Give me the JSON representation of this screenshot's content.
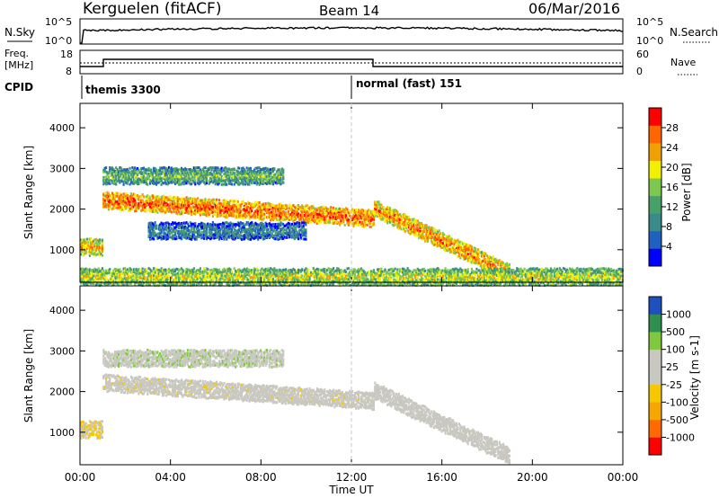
{
  "header": {
    "station": "Kerguelen (fitACF)",
    "beam": "Beam 14",
    "date": "06/Mar/2016"
  },
  "panels": {
    "nsky": {
      "left_label": "N.Sky",
      "left_tick_top": "10^5",
      "left_tick_bottom": "10^0",
      "right_label": "N.Search",
      "right_tick_top": "10^5",
      "right_tick_bottom": "10^0"
    },
    "freq": {
      "left_label_1": "Freq.",
      "left_label_2": "[MHz]",
      "left_tick_top": "18",
      "left_tick_bottom": "8",
      "right_label": "Nave",
      "right_tick_top": "60",
      "right_tick_bottom": "0"
    },
    "cpid": {
      "label": "CPID",
      "mode_1": "themis 3300",
      "mode_2": "normal (fast) 151",
      "mode_2_start_hour": 12.0
    }
  },
  "colors": {
    "power_scale": [
      "#0000ff",
      "#2060c0",
      "#3a8a8a",
      "#49a16a",
      "#7fc850",
      "#f0f000",
      "#f0a000",
      "#ff6600",
      "#ff0000"
    ],
    "velocity_scale": [
      "#ff0000",
      "#ff6a00",
      "#f7a600",
      "#f5c800",
      "#c8c8c0",
      "#c8c8c0",
      "#80c840",
      "#2f8f4f",
      "#2050c0"
    ]
  },
  "chart_data": [
    {
      "type": "heatmap",
      "title": "",
      "xlabel": "",
      "ylabel": "Slant Range [km]",
      "xlim": [
        0,
        24
      ],
      "ylim": [
        200,
        4600
      ],
      "y_ticks": [
        1000,
        2000,
        3000,
        4000
      ],
      "colorbar": {
        "label": "Power [dB]",
        "ticks": [
          "4",
          "8",
          "12",
          "16",
          "20",
          "24",
          "28"
        ],
        "range": [
          0,
          30
        ]
      },
      "features": [
        {
          "name": "E-region band",
          "x_range": [
            0,
            1.0
          ],
          "y_center": 1050,
          "value": 22
        },
        {
          "name": "main F band",
          "x_range": [
            1.0,
            13.0
          ],
          "y_start": 2200,
          "y_end": 1750,
          "value": 26
        },
        {
          "name": "upper band",
          "x_range": [
            1.0,
            9.0
          ],
          "y_center": 2800,
          "value": 14
        },
        {
          "name": "lower band",
          "x_range": [
            3.0,
            10.0
          ],
          "y_center": 1450,
          "value": 10
        },
        {
          "name": "descending trace",
          "x_range": [
            13.0,
            19.0
          ],
          "y_start": 2000,
          "y_end": 400,
          "value": 24
        },
        {
          "name": "near-range band",
          "x_range": [
            0,
            24.0
          ],
          "y_center": 320,
          "value": 18
        }
      ]
    },
    {
      "type": "heatmap",
      "title": "",
      "xlabel": "Time UT",
      "ylabel": "Slant Range [km]",
      "xlim": [
        0,
        24
      ],
      "ylim": [
        200,
        4600
      ],
      "x_ticks": [
        "00:00",
        "04:00",
        "08:00",
        "12:00",
        "16:00",
        "20:00",
        "00:00"
      ],
      "y_ticks": [
        1000,
        2000,
        3000,
        4000
      ],
      "colorbar": {
        "label": "Velocity [m s-1]",
        "ticks": [
          "-1000",
          "-500",
          "-100",
          "-25",
          "25",
          "100",
          "500",
          "1000"
        ],
        "range": [
          -1200,
          1200
        ]
      },
      "features": [
        {
          "name": "ground scatter band",
          "x_range": [
            1.0,
            13.0
          ],
          "y_start": 2200,
          "y_end": 1750,
          "value": 0
        },
        {
          "name": "upper band",
          "x_range": [
            1.0,
            9.0
          ],
          "y_center": 2800,
          "value": 300
        },
        {
          "name": "descending trace",
          "x_range": [
            13.0,
            19.0
          ],
          "y_start": 2000,
          "y_end": 400,
          "value": 150
        },
        {
          "name": "E-region band",
          "x_range": [
            0,
            1.0
          ],
          "y_center": 1050,
          "value": -150
        }
      ]
    }
  ]
}
